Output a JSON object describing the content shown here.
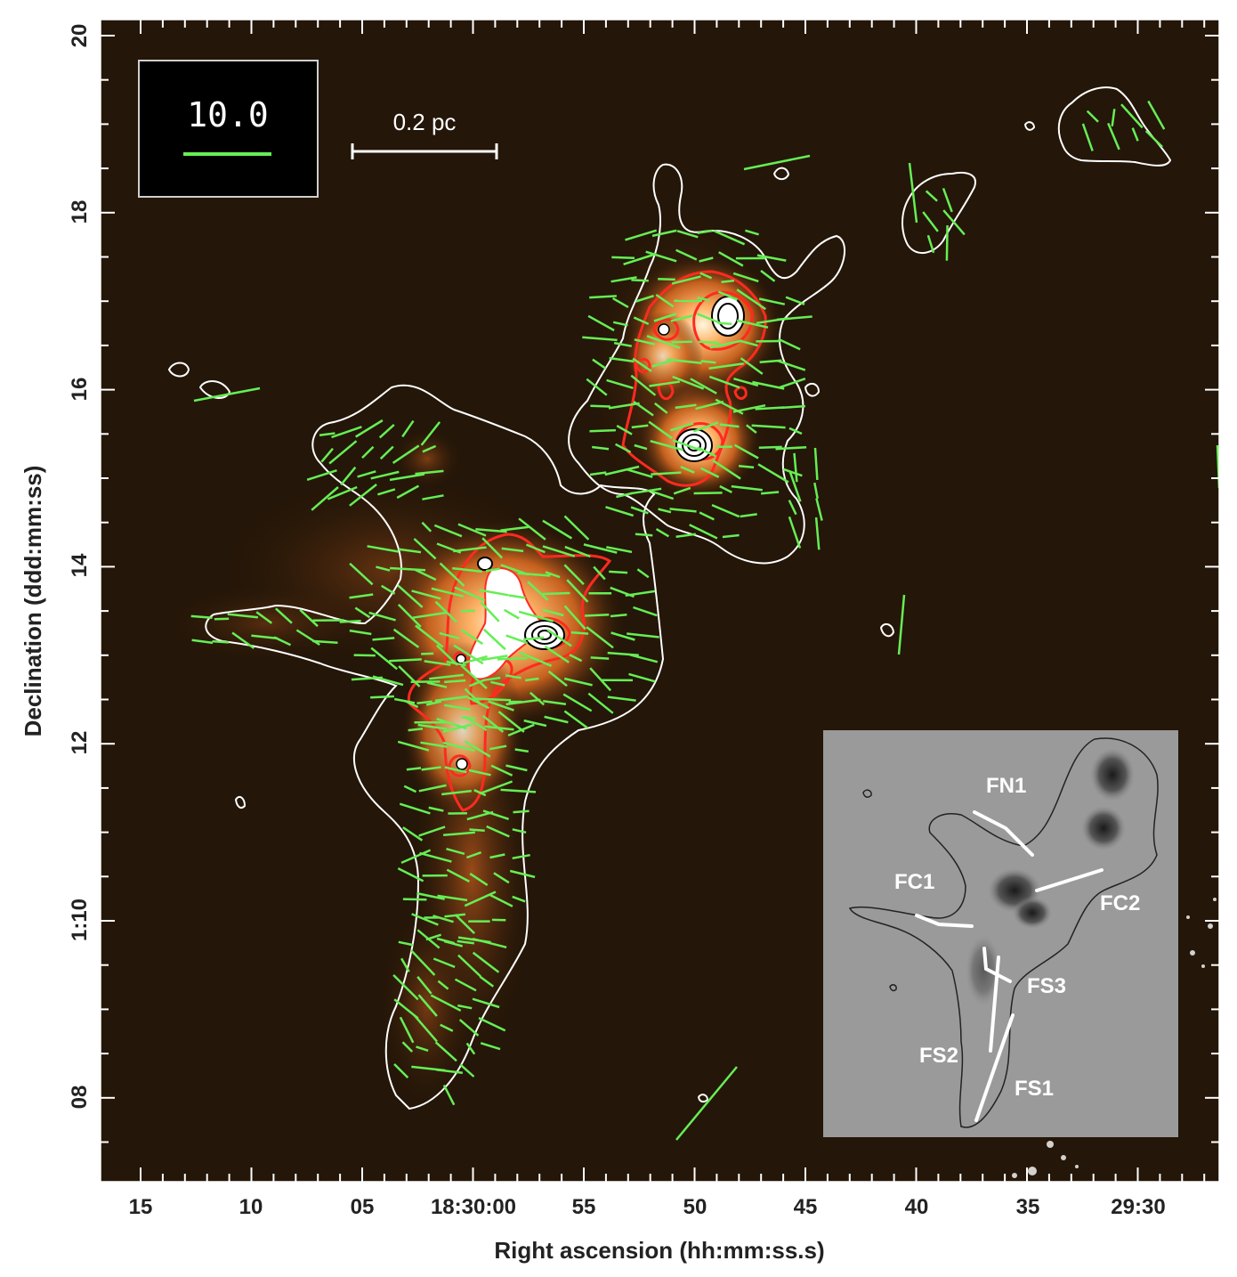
{
  "x_axis": {
    "title": "Right ascension (hh:mm:ss.s)",
    "tick_labels": [
      "15",
      "10",
      "05",
      "18:30:00",
      "55",
      "50",
      "45",
      "40",
      "35",
      "29:30"
    ]
  },
  "y_axis": {
    "title": "Declination (ddd:mm:ss)",
    "tick_labels": [
      "20",
      "18",
      "16",
      "14",
      "12",
      "1:10",
      "08"
    ]
  },
  "legend": {
    "value": "10.0",
    "bar_color": "#66ee55"
  },
  "scale_bar": {
    "label": "0.2 pc"
  },
  "inset": {
    "labels": [
      "FN1",
      "FC1",
      "FC2",
      "FS3",
      "FS2",
      "FS1"
    ]
  },
  "colors": {
    "background": "#241608",
    "vector": "#66ee55",
    "contour_outer": "#ffffff",
    "contour_mid": "#ff2a20",
    "contour_inner": "#000000",
    "inset_background": "#9a9a9a"
  }
}
